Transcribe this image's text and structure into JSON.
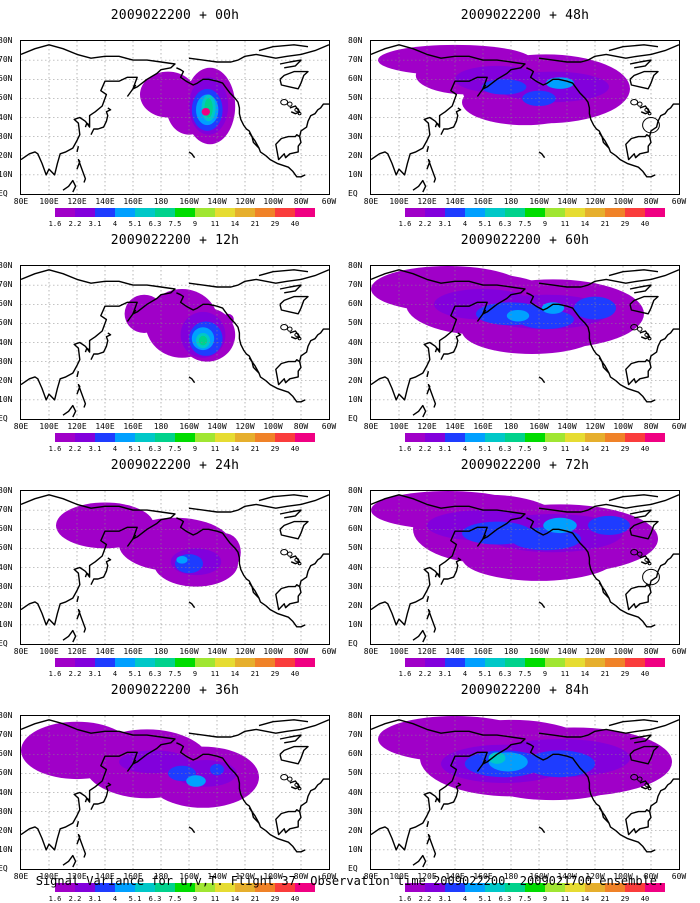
{
  "caption": "Signal Variance for u,v,T. Flight 37. Observation time 2009022200. 2009021700 ensemble.",
  "colorbar": {
    "colors": [
      "#a000c8",
      "#8200dc",
      "#1e3cff",
      "#00a0ff",
      "#00c8c8",
      "#00d28c",
      "#00dc00",
      "#a0e632",
      "#e6dc32",
      "#e6af2d",
      "#f08228",
      "#fa3c3c",
      "#f00082"
    ],
    "labels": [
      "1.6",
      "2.2",
      "3.1",
      "4",
      "5.1",
      "6.3",
      "7.5",
      "9",
      "11",
      "14",
      "21",
      "29",
      "40"
    ]
  },
  "x_axis_labels": [
    "80E",
    "100E",
    "120E",
    "140E",
    "160E",
    "180",
    "160W",
    "140W",
    "120W",
    "100W",
    "80W",
    "60W"
  ],
  "y_axis_labels": [
    "EQ",
    "10N",
    "20N",
    "30N",
    "40N",
    "50N",
    "60N",
    "70N",
    "80N"
  ],
  "chart_data": [
    {
      "type": "heatmap",
      "title": "2009022200 + 00h",
      "lead_hours": 0,
      "lon_range": [
        "80E",
        "60W"
      ],
      "lat_range": [
        "EQ",
        "80N"
      ],
      "variance_peak": "29–40",
      "peak_location": "approx 45N 140W"
    },
    {
      "type": "heatmap",
      "title": "2009022200 + 12h",
      "lead_hours": 12,
      "lon_range": [
        "80E",
        "60W"
      ],
      "lat_range": [
        "EQ",
        "80N"
      ],
      "variance_peak": "9–11",
      "peak_location": "approx 40N 140W"
    },
    {
      "type": "heatmap",
      "title": "2009022200 + 24h",
      "lead_hours": 24,
      "lon_range": [
        "80E",
        "60W"
      ],
      "lat_range": [
        "EQ",
        "80N"
      ],
      "variance_peak": "5.1–6.3",
      "peak_location": "approx 40N 150W"
    },
    {
      "type": "heatmap",
      "title": "2009022200 + 36h",
      "lead_hours": 36,
      "lon_range": [
        "80E",
        "60W"
      ],
      "lat_range": [
        "EQ",
        "80N"
      ],
      "variance_peak": "4–5.1",
      "peak_location": "approx 45N 150W"
    },
    {
      "type": "heatmap",
      "title": "2009022200 + 48h",
      "lead_hours": 48,
      "lon_range": [
        "80E",
        "60W"
      ],
      "lat_range": [
        "EQ",
        "80N"
      ],
      "variance_peak": "4–5.1",
      "peak_location": "approx 50N 160W"
    },
    {
      "type": "heatmap",
      "title": "2009022200 + 60h",
      "lead_hours": 60,
      "lon_range": [
        "80E",
        "60W"
      ],
      "lat_range": [
        "EQ",
        "80N"
      ],
      "variance_peak": "5.1–6.3",
      "peak_location": "approx 50N 150W"
    },
    {
      "type": "heatmap",
      "title": "2009022200 + 72h",
      "lead_hours": 72,
      "lon_range": [
        "80E",
        "60W"
      ],
      "lat_range": [
        "EQ",
        "80N"
      ],
      "variance_peak": "5.1–6.3",
      "peak_location": "approx 60N 140W"
    },
    {
      "type": "heatmap",
      "title": "2009022200 + 84h",
      "lead_hours": 84,
      "lon_range": [
        "80E",
        "60W"
      ],
      "lat_range": [
        "EQ",
        "80N"
      ],
      "variance_peak": "7.5–9",
      "peak_location": "approx 50N 175E"
    }
  ]
}
